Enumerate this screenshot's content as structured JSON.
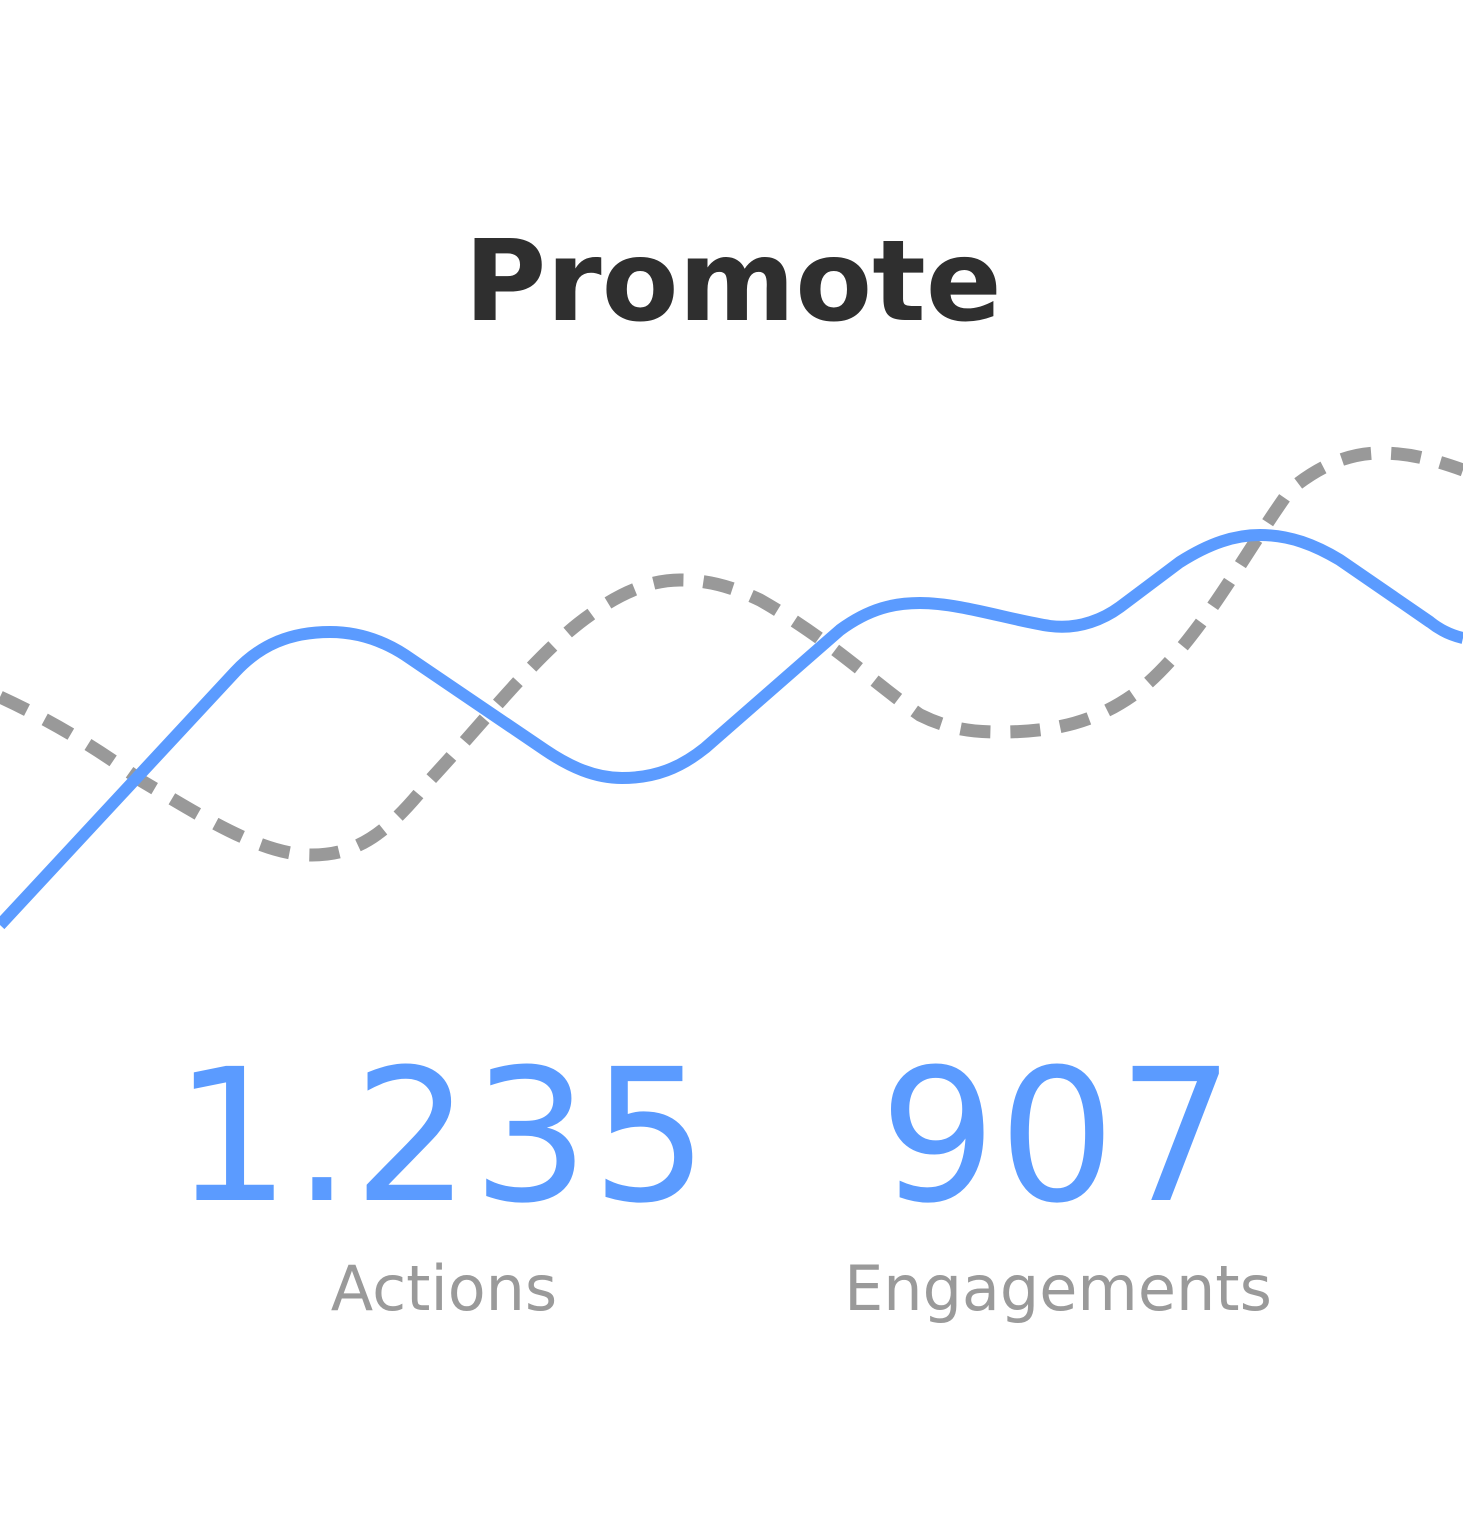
{
  "header": {
    "title": "Promote"
  },
  "stats": [
    {
      "value": "1.235",
      "label": "Actions"
    },
    {
      "value": "907",
      "label": "Engagements"
    }
  ]
}
